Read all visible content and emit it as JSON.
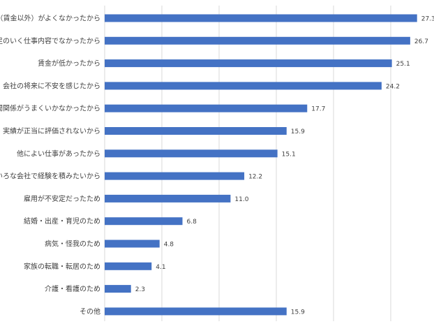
{
  "chart_data": {
    "type": "bar",
    "orientation": "horizontal",
    "categories": [
      "労働条件（賃金以外）がよくなかったから",
      "満足のいく仕事内容でなかったから",
      "賃金が低かったから",
      "会社の将来に不安を感じたから",
      "人間関係がうまくいかなかったから",
      "能力・実績が正当に評価されないから",
      "他によい仕事があったから",
      "いろいろな会社で経験を積みたいから",
      "雇用が不安定だったため",
      "結婚・出産・育児のため",
      "病気・怪我のため",
      "家族の転職・転居のため",
      "介護・看護のため",
      "その他"
    ],
    "values": [
      27.3,
      26.7,
      25.1,
      24.2,
      17.7,
      15.9,
      15.1,
      12.2,
      11.0,
      6.8,
      4.8,
      4.1,
      2.3,
      15.9
    ],
    "value_labels": [
      "27.3",
      "26.7",
      "25.1",
      "24.2",
      "17.7",
      "15.9",
      "15.1",
      "12.2",
      "11.0",
      "6.8",
      "4.8",
      "4.1",
      "2.3",
      "15.9"
    ],
    "xlim": [
      0,
      30
    ],
    "gridlines": [
      0,
      5,
      10,
      15,
      20,
      25,
      30
    ],
    "grid": true,
    "legend": "none",
    "colors": {
      "bar": "#4472c4",
      "grid": "#d9d9d9",
      "text": "#404040"
    }
  }
}
